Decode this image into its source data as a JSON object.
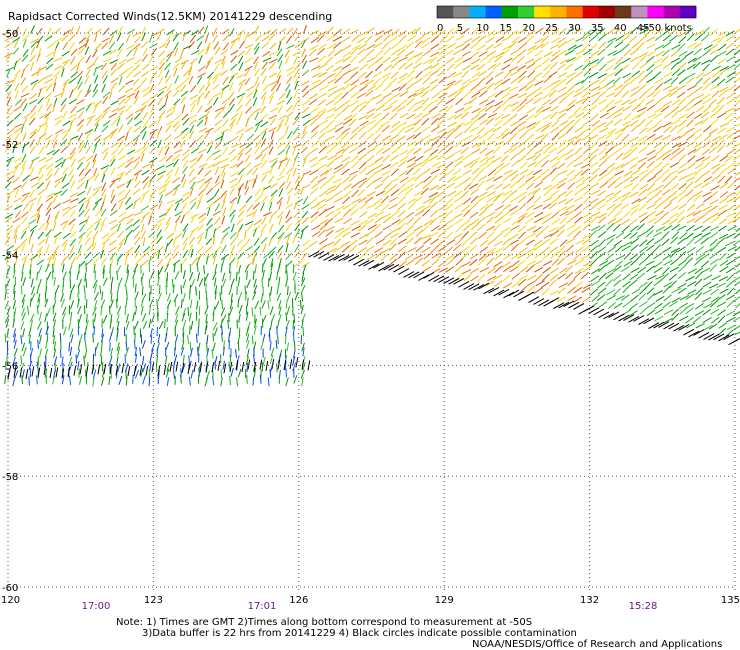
{
  "title": "Rapidsact Corrected Winds(12.5KM) 20141229 descending",
  "legend": {
    "labels": [
      "0",
      "5",
      "10",
      "15",
      "20",
      "25",
      "30",
      "35",
      "40",
      "45",
      ">50 knots"
    ],
    "colors": [
      "#555555",
      "#888888",
      "#00b0ff",
      "#0060ff",
      "#00a000",
      "#30d030",
      "#ffe000",
      "#ffb000",
      "#ff7000",
      "#e00000",
      "#a00000",
      "#6b3a1a",
      "#c090c0",
      "#ff00ff",
      "#b000b0",
      "#6000c0"
    ]
  },
  "axes": {
    "x_ticks": [
      "120",
      "123",
      "126",
      "129",
      "132",
      "135"
    ],
    "y_ticks": [
      "-50",
      "-52",
      "-54",
      "-56",
      "-58",
      "-60"
    ]
  },
  "times": [
    "17:00",
    "17:01",
    "15:28"
  ],
  "notes": {
    "line1": "Note: 1) Times are GMT 2)Times along bottom correspond to measurement at -50S",
    "line2": "3)Data buffer is 22 hrs from 20141229 4) Black circles indicate possible contamination",
    "line3": "NOAA/NESDIS/Office of Research and Applications"
  },
  "colors": {
    "wind_high": "#e06000",
    "wind_mid": "#f0c000",
    "wind_low": "#00a000",
    "wind_lowest": "#0040e0",
    "flagged": "#000000",
    "grid": "#555555"
  }
}
